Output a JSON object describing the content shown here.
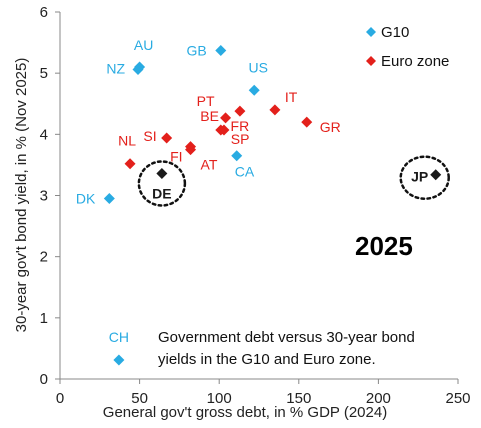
{
  "chart_data": {
    "type": "scatter",
    "xlabel": "General gov't gross debt, in % GDP (2024)",
    "ylabel": "30-year gov't bond yield, in % (Nov 2025)",
    "xlim": [
      0,
      250
    ],
    "ylim": [
      0,
      6
    ],
    "x_ticks": [
      "0",
      "50",
      "100",
      "150",
      "200",
      "250"
    ],
    "y_ticks": [
      "0",
      "1",
      "2",
      "3",
      "4",
      "5",
      "6"
    ],
    "grid": false,
    "year_label": "2025",
    "note_lines": [
      "Government debt versus 30-year bond",
      "yields in the G10 and Euro zone."
    ],
    "legend_position": "top-right",
    "series": [
      {
        "name": "G10",
        "color": "#29abe2",
        "points": [
          {
            "label": "AU",
            "x": 50,
            "y": 5.1
          },
          {
            "label": "NZ",
            "x": 49,
            "y": 5.06
          },
          {
            "label": "GB",
            "x": 101,
            "y": 5.37
          },
          {
            "label": "US",
            "x": 122,
            "y": 4.72
          },
          {
            "label": "CA",
            "x": 111,
            "y": 3.65
          },
          {
            "label": "DK",
            "x": 31,
            "y": 2.95
          },
          {
            "label": "CH",
            "x": 37,
            "y": 0.31
          }
        ]
      },
      {
        "name": "Euro zone",
        "color": "#e3201b",
        "points": [
          {
            "label": "PT",
            "x": 104,
            "y": 4.27
          },
          {
            "label": "IT",
            "x": 135,
            "y": 4.4
          },
          {
            "label": "FR",
            "x": 113,
            "y": 4.38
          },
          {
            "label": "GR",
            "x": 155,
            "y": 4.2
          },
          {
            "label": "BE",
            "x": 103,
            "y": 4.07
          },
          {
            "label": "SP",
            "x": 101,
            "y": 4.07
          },
          {
            "label": "SI",
            "x": 67,
            "y": 3.94
          },
          {
            "label": "AT",
            "x": 82,
            "y": 3.8
          },
          {
            "label": "FI",
            "x": 82,
            "y": 3.75
          },
          {
            "label": "NL",
            "x": 44,
            "y": 3.52
          }
        ]
      },
      {
        "name": "",
        "color": "#1a1a1a",
        "points": [
          {
            "label": "DE",
            "x": 64,
            "y": 3.36
          },
          {
            "label": "JP",
            "x": 236,
            "y": 3.34
          }
        ]
      }
    ]
  }
}
